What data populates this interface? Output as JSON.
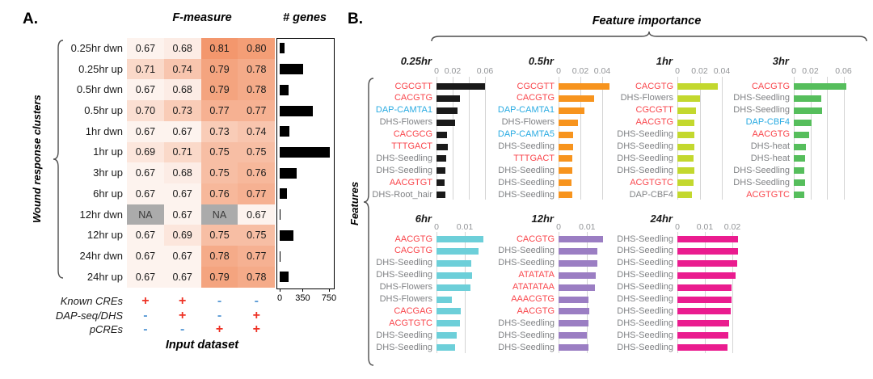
{
  "figure": {
    "panel_a_letter": "A.",
    "panel_b_letter": "B.",
    "f_measure_title": "F-measure",
    "genes_title": "# genes",
    "wound_label": "Wound response clusters",
    "input_dataset_label": "Input dataset",
    "feature_importance_title": "Feature importance",
    "features_label": "Features"
  },
  "colors": {
    "heat_low": "#FDF3EE",
    "heat_high": "#F3976D",
    "na_cell": "#ABABAB",
    "plus": "#EE3124",
    "minus": "#5B9BD5",
    "label_red": "#F9464C",
    "label_blue": "#29ABE2",
    "label_gray": "#808285",
    "genes_bar": "#000000"
  },
  "chart_data": [
    {
      "type": "heatmap",
      "title": "F-measure",
      "row_axis": "Wound response clusters",
      "col_axis": "Input dataset",
      "na_text": "NA",
      "vmin": 0.67,
      "vmax": 0.81,
      "rows": [
        "0.25hr dwn",
        "0.25hr up",
        "0.5hr dwn",
        "0.5hr up",
        "1hr dwn",
        "1hr up",
        "3hr up",
        "6hr up",
        "12hr dwn",
        "12hr up",
        "24hr dwn",
        "24hr up"
      ],
      "values": [
        [
          0.67,
          0.68,
          0.81,
          0.8
        ],
        [
          0.71,
          0.74,
          0.79,
          0.78
        ],
        [
          0.67,
          0.68,
          0.79,
          0.78
        ],
        [
          0.7,
          0.73,
          0.77,
          0.77
        ],
        [
          0.67,
          0.67,
          0.73,
          0.74
        ],
        [
          0.69,
          0.71,
          0.75,
          0.75
        ],
        [
          0.67,
          0.68,
          0.75,
          0.76
        ],
        [
          0.67,
          0.67,
          0.76,
          0.77
        ],
        [
          null,
          0.67,
          null,
          0.67
        ],
        [
          0.67,
          0.69,
          0.75,
          0.75
        ],
        [
          0.67,
          0.67,
          0.78,
          0.77
        ],
        [
          0.67,
          0.67,
          0.79,
          0.78
        ]
      ]
    },
    {
      "type": "bar",
      "title": "# genes",
      "orientation": "horizontal",
      "xlim": [
        0,
        750
      ],
      "xticks": [
        0,
        350,
        750
      ],
      "categories": [
        "0.25hr dwn",
        "0.25hr up",
        "0.5hr dwn",
        "0.5hr up",
        "1hr dwn",
        "1hr up",
        "3hr up",
        "6hr up",
        "12hr dwn",
        "12hr up",
        "24hr dwn",
        "24hr up"
      ],
      "values": [
        70,
        360,
        140,
        500,
        150,
        760,
        260,
        110,
        15,
        205,
        15,
        140
      ]
    },
    {
      "type": "table",
      "title": "Input dataset",
      "row_labels": [
        "Known CREs",
        "DAP-seq/DHS",
        "pCREs"
      ],
      "cells": [
        [
          "+",
          "+",
          "-",
          "-"
        ],
        [
          "-",
          "+",
          "-",
          "+"
        ],
        [
          "-",
          "-",
          "+",
          "+"
        ]
      ]
    },
    {
      "type": "bar",
      "title": "0.25hr",
      "bar_color": "#1A1A1A",
      "xticks": [
        {
          "v": 0,
          "label": "0"
        },
        {
          "v": 0.02,
          "label": "0.02"
        },
        {
          "v": 0.04,
          "label": ""
        },
        {
          "v": 0.06,
          "label": "0.06"
        }
      ],
      "features": [
        {
          "label": "CGCGTT",
          "color": "red",
          "value": 0.06
        },
        {
          "label": "CACGTG",
          "color": "red",
          "value": 0.029
        },
        {
          "label": "DAP-CAMTA1",
          "color": "blue",
          "value": 0.026
        },
        {
          "label": "DHS-Flowers",
          "color": "gray",
          "value": 0.023
        },
        {
          "label": "CACGCG",
          "color": "red",
          "value": 0.013
        },
        {
          "label": "TTTGACT",
          "color": "red",
          "value": 0.014
        },
        {
          "label": "DHS-Seedling",
          "color": "gray",
          "value": 0.0117
        },
        {
          "label": "DHS-Seedling",
          "color": "gray",
          "value": 0.0107
        },
        {
          "label": "AACGTGT",
          "color": "red",
          "value": 0.01
        },
        {
          "label": "DHS-Root_hair",
          "color": "gray",
          "value": 0.0107
        }
      ]
    },
    {
      "type": "bar",
      "title": "0.5hr",
      "bar_color": "#F7941E",
      "xticks": [
        {
          "v": 0,
          "label": "0"
        },
        {
          "v": 0.02,
          "label": "0.02"
        },
        {
          "v": 0.04,
          "label": "0.04"
        }
      ],
      "features": [
        {
          "label": "CGCGTT",
          "color": "red",
          "value": 0.047
        },
        {
          "label": "CACGTG",
          "color": "red",
          "value": 0.0325
        },
        {
          "label": "DAP-CAMTA1",
          "color": "blue",
          "value": 0.0238
        },
        {
          "label": "DHS-Flowers",
          "color": "gray",
          "value": 0.0175
        },
        {
          "label": "DAP-CAMTA5",
          "color": "blue",
          "value": 0.0133
        },
        {
          "label": "DHS-Seedling",
          "color": "gray",
          "value": 0.0133
        },
        {
          "label": "TTTGACT",
          "color": "red",
          "value": 0.0125
        },
        {
          "label": "DHS-Seedling",
          "color": "gray",
          "value": 0.0128
        },
        {
          "label": "DHS-Seedling",
          "color": "gray",
          "value": 0.012
        },
        {
          "label": "DHS-Seedling",
          "color": "gray",
          "value": 0.0128
        }
      ]
    },
    {
      "type": "bar",
      "title": "1hr",
      "bar_color": "#C3D82E",
      "xticks": [
        {
          "v": 0,
          "label": "0"
        },
        {
          "v": 0.02,
          "label": "0.02"
        },
        {
          "v": 0.04,
          "label": "0.04"
        }
      ],
      "features": [
        {
          "label": "CACGTG",
          "color": "red",
          "value": 0.0364
        },
        {
          "label": "DHS-Flowers",
          "color": "gray",
          "value": 0.0206
        },
        {
          "label": "CGCGTT",
          "color": "red",
          "value": 0.0165
        },
        {
          "label": "AACGTG",
          "color": "red",
          "value": 0.015
        },
        {
          "label": "DHS-Seedling",
          "color": "gray",
          "value": 0.0155
        },
        {
          "label": "DHS-Seedling",
          "color": "gray",
          "value": 0.015
        },
        {
          "label": "DHS-Seedling",
          "color": "gray",
          "value": 0.0145
        },
        {
          "label": "DHS-Seedling",
          "color": "gray",
          "value": 0.0155
        },
        {
          "label": "ACGTGTC",
          "color": "red",
          "value": 0.0145
        },
        {
          "label": "DAP-CBF4",
          "color": "gray",
          "value": 0.0133
        }
      ]
    },
    {
      "type": "bar",
      "title": "3hr",
      "bar_color": "#56BE5C",
      "xticks": [
        {
          "v": 0,
          "label": "0"
        },
        {
          "v": 0.02,
          "label": "0.02"
        },
        {
          "v": 0.04,
          "label": ""
        },
        {
          "v": 0.06,
          "label": "0.06"
        }
      ],
      "features": [
        {
          "label": "CACGTG",
          "color": "red",
          "value": 0.0632
        },
        {
          "label": "DHS-Seedling",
          "color": "gray",
          "value": 0.0334
        },
        {
          "label": "DHS-Seedling",
          "color": "gray",
          "value": 0.034
        },
        {
          "label": "DAP-CBF4",
          "color": "blue",
          "value": 0.021
        },
        {
          "label": "AACGTG",
          "color": "red",
          "value": 0.0185
        },
        {
          "label": "DHS-heat",
          "color": "gray",
          "value": 0.0146
        },
        {
          "label": "DHS-heat",
          "color": "gray",
          "value": 0.0139
        },
        {
          "label": "DHS-Seedling",
          "color": "gray",
          "value": 0.013
        },
        {
          "label": "DHS-Seedling",
          "color": "gray",
          "value": 0.0136
        },
        {
          "label": "ACGTGTC",
          "color": "red",
          "value": 0.013
        }
      ]
    },
    {
      "type": "bar",
      "title": "6hr",
      "bar_color": "#6DCFD9",
      "xticks": [
        {
          "v": 0,
          "label": "0"
        },
        {
          "v": 0.01,
          "label": "0.01"
        }
      ],
      "features": [
        {
          "label": "AACGTG",
          "color": "red",
          "value": 0.0167
        },
        {
          "label": "CACGTG",
          "color": "red",
          "value": 0.0148
        },
        {
          "label": "DHS-Seedling",
          "color": "gray",
          "value": 0.0122
        },
        {
          "label": "DHS-Seedling",
          "color": "gray",
          "value": 0.0126
        },
        {
          "label": "DHS-Flowers",
          "color": "gray",
          "value": 0.0119
        },
        {
          "label": "DHS-Flowers",
          "color": "gray",
          "value": 0.0055
        },
        {
          "label": "CACGAG",
          "color": "red",
          "value": 0.0086
        },
        {
          "label": "ACGTGTC",
          "color": "red",
          "value": 0.0084
        },
        {
          "label": "DHS-Seedling",
          "color": "gray",
          "value": 0.0071
        },
        {
          "label": "DHS-Seedling",
          "color": "gray",
          "value": 0.0067
        }
      ]
    },
    {
      "type": "bar",
      "title": "12hr",
      "bar_color": "#9B7EC3",
      "xticks": [
        {
          "v": 0,
          "label": "0"
        },
        {
          "v": 0.01,
          "label": "0.01"
        }
      ],
      "features": [
        {
          "label": "CACGTG",
          "color": "red",
          "value": 0.0157
        },
        {
          "label": "DHS-Seedling",
          "color": "gray",
          "value": 0.0135
        },
        {
          "label": "DHS-Seedling",
          "color": "gray",
          "value": 0.0137
        },
        {
          "label": "ATATATA",
          "color": "red",
          "value": 0.013
        },
        {
          "label": "ATATATAA",
          "color": "red",
          "value": 0.0128
        },
        {
          "label": "AAACGTG",
          "color": "red",
          "value": 0.0105
        },
        {
          "label": "AACGTG",
          "color": "red",
          "value": 0.0107
        },
        {
          "label": "DHS-Seedling",
          "color": "gray",
          "value": 0.0104
        },
        {
          "label": "DHS-Seedling",
          "color": "gray",
          "value": 0.01
        },
        {
          "label": "DHS-Seedling",
          "color": "gray",
          "value": 0.0104
        }
      ]
    },
    {
      "type": "bar",
      "title": "24hr",
      "bar_color": "#EA1C8F",
      "xticks": [
        {
          "v": 0,
          "label": "0"
        },
        {
          "v": 0.01,
          "label": "0.01"
        },
        {
          "v": 0.02,
          "label": "0.02"
        }
      ],
      "features": [
        {
          "label": "DHS-Seedling",
          "color": "gray",
          "value": 0.0222
        },
        {
          "label": "DHS-Seedling",
          "color": "gray",
          "value": 0.0222
        },
        {
          "label": "DHS-Seedling",
          "color": "gray",
          "value": 0.0219
        },
        {
          "label": "DHS-Seedling",
          "color": "gray",
          "value": 0.0213
        },
        {
          "label": "DHS-Seedling",
          "color": "gray",
          "value": 0.0196
        },
        {
          "label": "DHS-Seedling",
          "color": "gray",
          "value": 0.0196
        },
        {
          "label": "DHS-Seedling",
          "color": "gray",
          "value": 0.0193
        },
        {
          "label": "DHS-Seedling",
          "color": "gray",
          "value": 0.0188
        },
        {
          "label": "DHS-Seedling",
          "color": "gray",
          "value": 0.0185
        },
        {
          "label": "DHS-Seedling",
          "color": "gray",
          "value": 0.0183
        }
      ]
    }
  ]
}
